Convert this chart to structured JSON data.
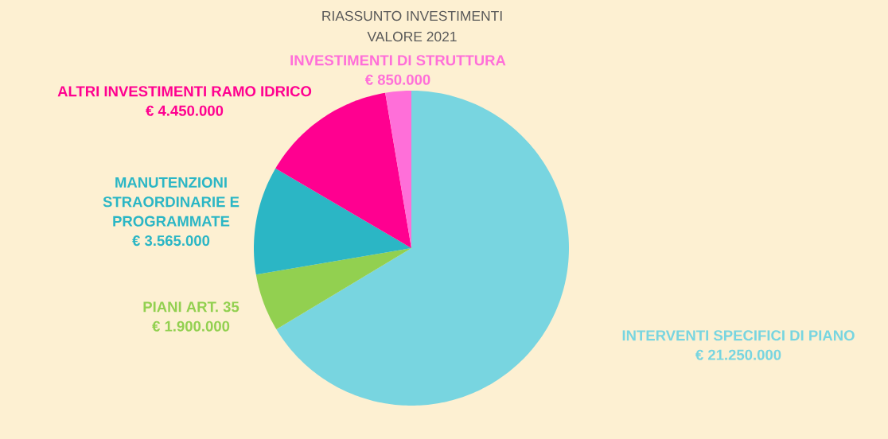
{
  "chart_data": {
    "type": "pie",
    "title": "RIASSUNTO INVESTIMENTI",
    "subtitle": "VALORE 2021",
    "categories": [
      "INTERVENTI SPECIFICI DI PIANO",
      "PIANI ART. 35",
      "MANUTENZIONI STRAORDINARIE E PROGRAMMATE",
      "ALTRI INVESTIMENTI RAMO IDRICO",
      "INVESTIMENTI DI STRUTTURA"
    ],
    "values": [
      21250000,
      1900000,
      3565000,
      4450000,
      850000
    ],
    "value_labels": [
      "€ 21.250.000",
      "€ 1.900.000",
      "€ 3.565.000",
      "€ 4.450.000",
      "€ 850.000"
    ],
    "colors": [
      "#78d5e0",
      "#92d050",
      "#2bb6c5",
      "#ff0090",
      "#ff6fd9"
    ]
  }
}
